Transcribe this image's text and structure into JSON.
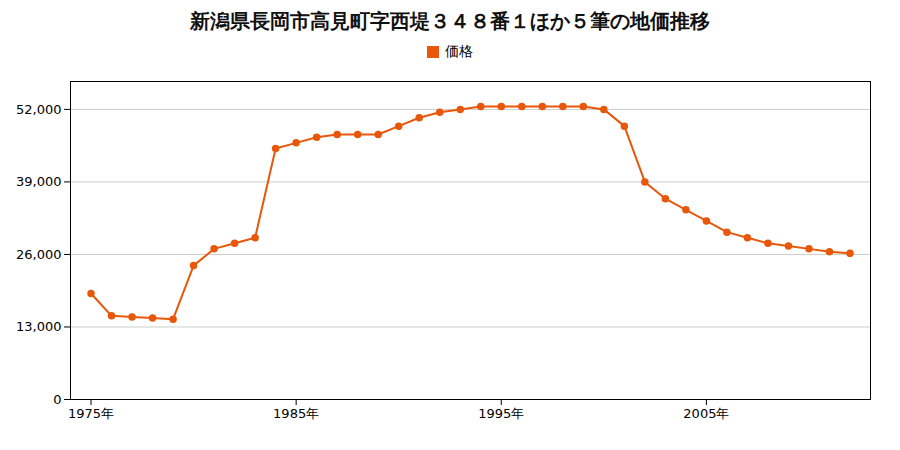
{
  "chart_data": {
    "type": "line",
    "title": "新潟県長岡市高見町字西堤３４８番１ほか５筆の地価推移",
    "x": [
      1975,
      1976,
      1977,
      1978,
      1979,
      1980,
      1981,
      1982,
      1983,
      1984,
      1985,
      1986,
      1987,
      1988,
      1989,
      1990,
      1991,
      1992,
      1993,
      1994,
      1995,
      1996,
      1997,
      1998,
      1999,
      2000,
      2001,
      2002,
      2003,
      2004,
      2005,
      2006,
      2007,
      2008,
      2009,
      2010,
      2011,
      2012
    ],
    "series": [
      {
        "name": "価格",
        "color": "#E8570A",
        "marker": "circle",
        "values": [
          19000,
          15000,
          14800,
          14600,
          14400,
          24000,
          27000,
          28000,
          29000,
          45000,
          46000,
          47000,
          47500,
          47500,
          47500,
          49000,
          50500,
          51500,
          52000,
          52500,
          52500,
          52500,
          52500,
          52500,
          52500,
          52000,
          49000,
          39000,
          36000,
          34000,
          32000,
          30000,
          29000,
          28000,
          27500,
          27000,
          26500,
          26200
        ]
      }
    ],
    "xlim": [
      1974,
      2013
    ],
    "xticks": [
      {
        "value": 1975,
        "label": "1975年"
      },
      {
        "value": 1985,
        "label": "1985年"
      },
      {
        "value": 1995,
        "label": "1995年"
      },
      {
        "value": 2005,
        "label": "2005年"
      }
    ],
    "ylim": [
      0,
      57000
    ],
    "yticks": [
      0,
      {
        "value": 13000,
        "label": "13,000"
      },
      {
        "value": 26000,
        "label": "26,000"
      },
      {
        "value": 39000,
        "label": "39,000"
      },
      {
        "value": 52000,
        "label": "52,000"
      }
    ],
    "grid": "y",
    "legend": "top"
  }
}
